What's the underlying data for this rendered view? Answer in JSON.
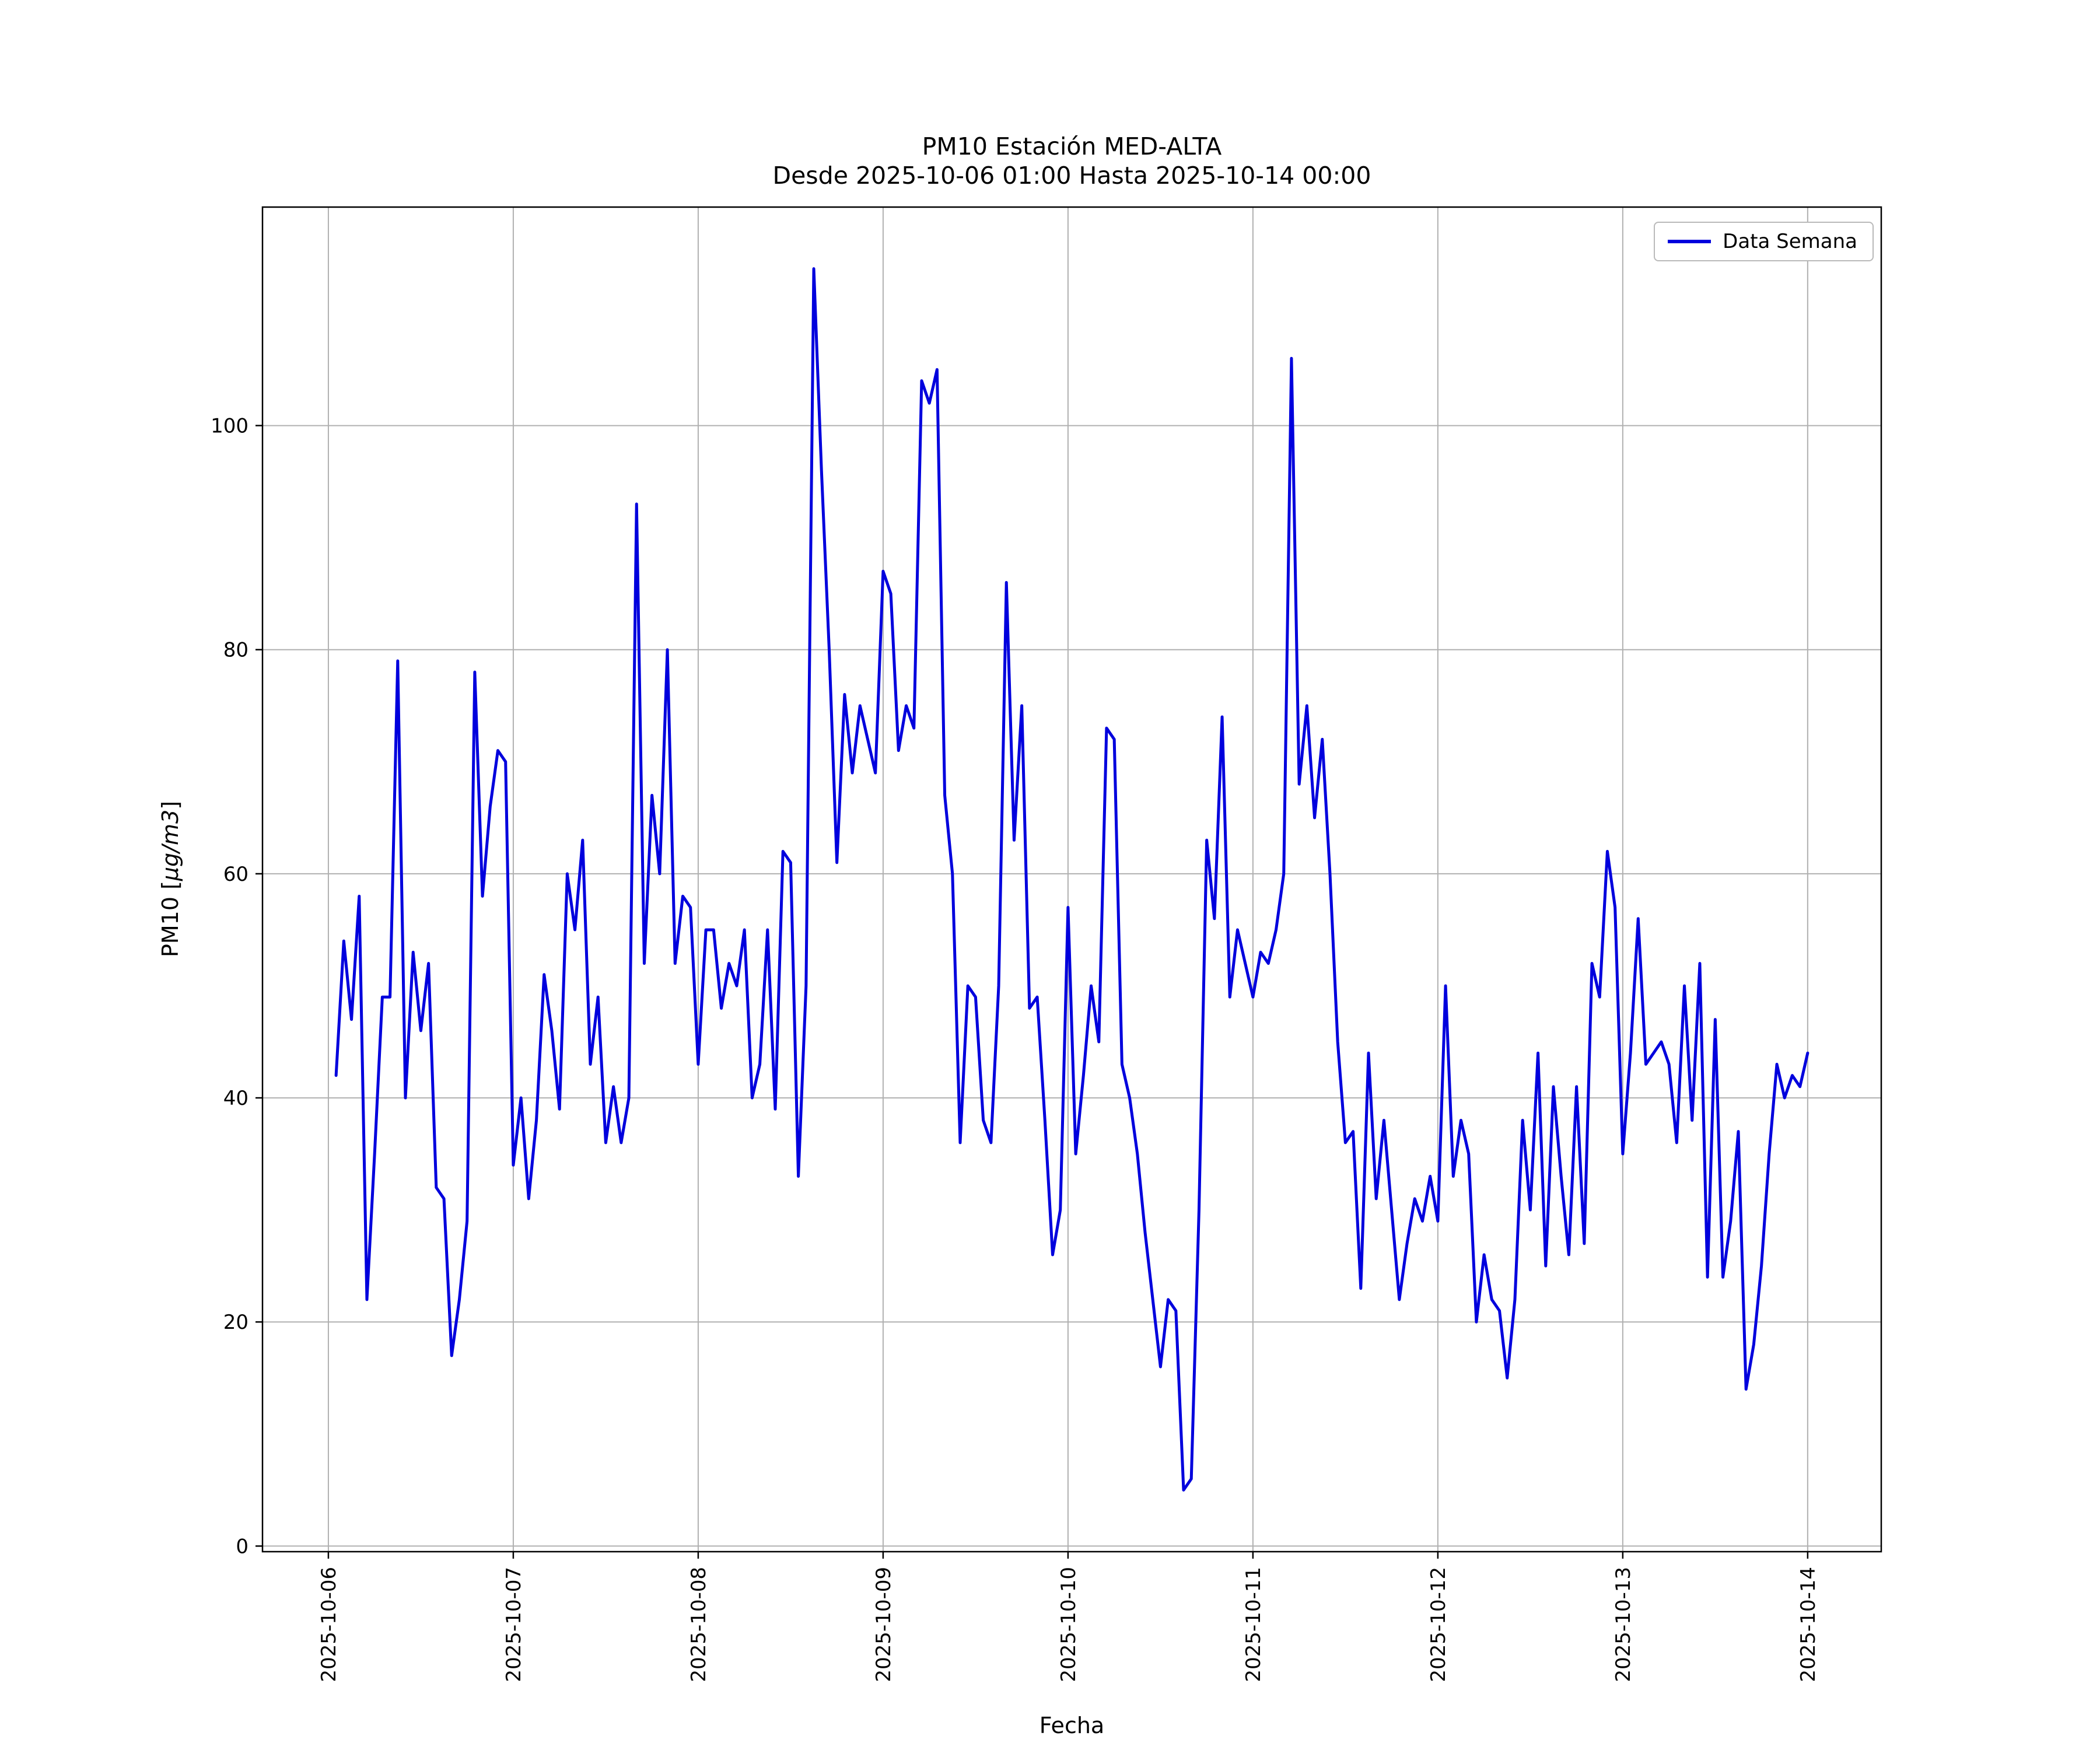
{
  "figure": {
    "title_line1": "PM10 Estación MED-ALTA",
    "title_line2": "Desde 2025-10-06 01:00 Hasta 2025-10-14 00:00",
    "xlabel": "Fecha",
    "ylabel_prefix": "PM10 [",
    "ylabel_italic": "µg/m3",
    "ylabel_suffix": "]",
    "legend_label": "Data Semana",
    "line_color": "#0000dd",
    "grid_color": "#b0b0b0",
    "spine_color": "#000000"
  },
  "chart_data": {
    "type": "line",
    "title": "PM10 Estación MED-ALTA — Desde 2025-10-06 01:00 Hasta 2025-10-14 00:00",
    "xlabel": "Fecha",
    "ylabel": "PM10 [µg/m3]",
    "legend": [
      "Data Semana"
    ],
    "legend_position": "upper right",
    "grid": true,
    "start": "2025-10-06 01:00",
    "end": "2025-10-14 00:00",
    "interval_hours": 1,
    "x_tick_labels": [
      "2025-10-06",
      "2025-10-07",
      "2025-10-08",
      "2025-10-09",
      "2025-10-10",
      "2025-10-11",
      "2025-10-12",
      "2025-10-13",
      "2025-10-14"
    ],
    "y_ticks": [
      0,
      20,
      40,
      60,
      80,
      100
    ],
    "ylim": [
      -0.5,
      119.5
    ],
    "values": [
      42,
      54,
      47,
      58,
      22,
      35,
      49,
      49,
      79,
      40,
      53,
      46,
      52,
      32,
      31,
      17,
      22,
      29,
      78,
      58,
      66,
      71,
      70,
      34,
      40,
      31,
      38,
      51,
      46,
      39,
      60,
      55,
      63,
      43,
      49,
      36,
      41,
      36,
      40,
      93,
      52,
      67,
      60,
      80,
      52,
      58,
      57,
      43,
      55,
      55,
      48,
      52,
      50,
      55,
      40,
      43,
      55,
      39,
      62,
      61,
      33,
      50,
      114,
      96,
      80,
      61,
      76,
      69,
      75,
      72,
      69,
      87,
      85,
      71,
      75,
      73,
      104,
      102,
      105,
      67,
      60,
      36,
      50,
      49,
      38,
      36,
      50,
      86,
      63,
      75,
      48,
      49,
      38,
      26,
      30,
      57,
      35,
      42,
      50,
      45,
      73,
      72,
      43,
      40,
      35,
      28,
      22,
      16,
      22,
      21,
      5,
      6,
      30,
      63,
      56,
      74,
      49,
      55,
      52,
      49,
      53,
      52,
      55,
      60,
      106,
      68,
      75,
      65,
      72,
      60,
      45,
      36,
      37,
      23,
      44,
      31,
      38,
      30,
      22,
      27,
      31,
      29,
      33,
      29,
      50,
      33,
      38,
      35,
      20,
      26,
      22,
      21,
      15,
      22,
      38,
      30,
      44,
      25,
      41,
      33,
      26,
      41,
      27,
      52,
      49,
      62,
      57,
      35,
      44,
      56,
      43,
      44,
      45,
      43,
      36,
      50,
      38,
      52,
      24,
      47,
      24,
      29,
      37,
      14,
      18,
      25,
      35,
      43,
      40,
      42,
      41,
      44
    ]
  }
}
